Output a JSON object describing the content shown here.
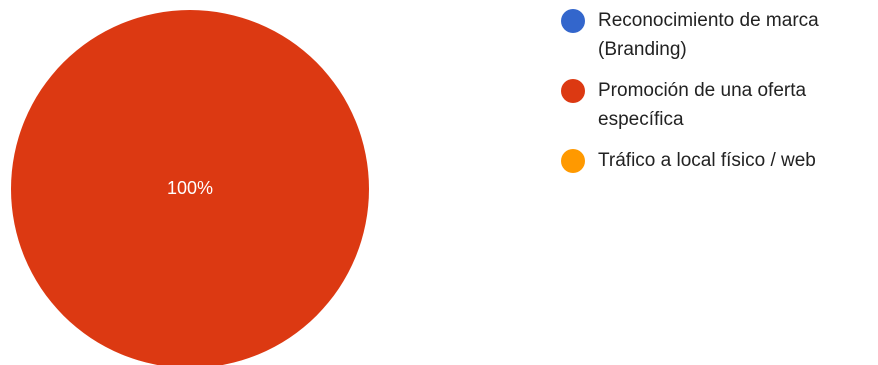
{
  "chart_data": {
    "type": "pie",
    "title": "",
    "slices": [
      {
        "name": "Reconocimiento de marca (Branding)",
        "value": 0,
        "color": "#3366cc"
      },
      {
        "name": "Promoción de una oferta específica",
        "value": 100,
        "color": "#dc3912",
        "label": "100%"
      },
      {
        "name": "Tráfico a local físico / web",
        "value": 0,
        "color": "#ff9900"
      }
    ],
    "legend_position": "right"
  }
}
